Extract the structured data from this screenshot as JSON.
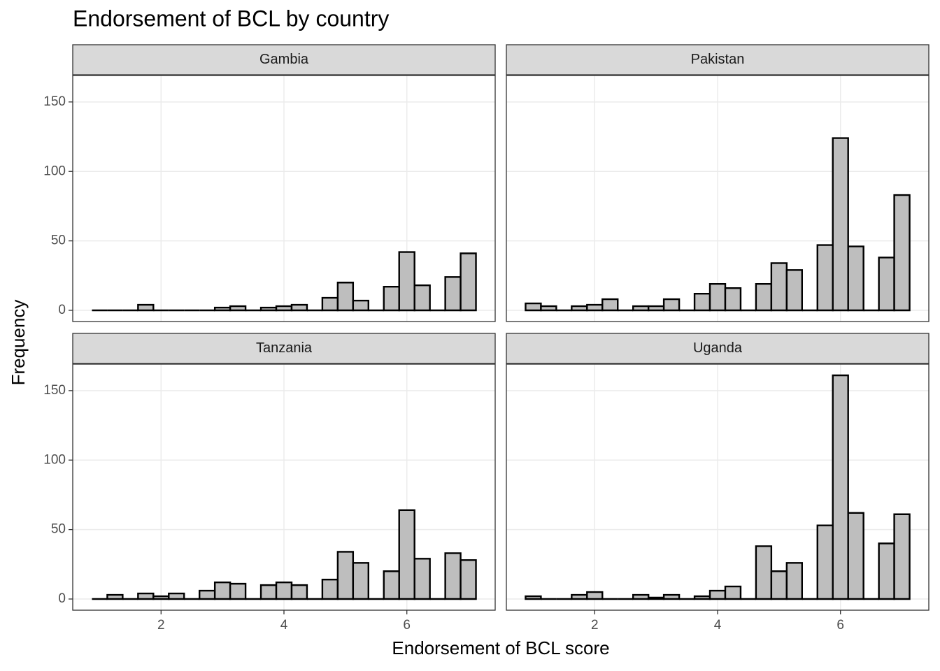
{
  "chart_data": {
    "type": "histogram",
    "title": "Endorsement of BCL by country",
    "x_label": "Endorsement of BCL score",
    "y_label": "Frequency",
    "bins": [
      0.875,
      1.125,
      1.375,
      1.625,
      1.875,
      2.125,
      2.375,
      2.625,
      2.875,
      3.125,
      3.375,
      3.625,
      3.875,
      4.125,
      4.375,
      4.625,
      4.875,
      5.125,
      5.375,
      5.625,
      5.875,
      6.125,
      6.375,
      6.625,
      6.875,
      7.125
    ],
    "facets": [
      {
        "title": "Gambia",
        "values": [
          0,
          0,
          0,
          4,
          0,
          0,
          0,
          0,
          2,
          3,
          0,
          2,
          3,
          4,
          0,
          9,
          20,
          7,
          0,
          17,
          42,
          18,
          0,
          24,
          41
        ]
      },
      {
        "title": "Pakistan",
        "values": [
          5,
          3,
          0,
          3,
          4,
          8,
          0,
          3,
          3,
          8,
          0,
          12,
          19,
          16,
          0,
          19,
          34,
          29,
          0,
          47,
          124,
          46,
          0,
          38,
          83
        ]
      },
      {
        "title": "Tanzania",
        "values": [
          0,
          3,
          0,
          4,
          2,
          4,
          0,
          6,
          12,
          11,
          0,
          10,
          12,
          10,
          0,
          14,
          34,
          26,
          0,
          20,
          64,
          29,
          0,
          33,
          28
        ]
      },
      {
        "title": "Uganda",
        "values": [
          2,
          0,
          0,
          3,
          5,
          0,
          0,
          3,
          1,
          3,
          0,
          2,
          6,
          9,
          0,
          38,
          20,
          26,
          0,
          53,
          161,
          62,
          0,
          40,
          61
        ]
      }
    ],
    "xlim": [
      0.5625,
      7.4375
    ],
    "xticks": [
      2,
      4,
      6
    ],
    "ylim": [
      -8.05,
      169.05
    ],
    "yticks": [
      0,
      50,
      100,
      150
    ],
    "color": "#bebebe",
    "edgecolor": "#000000",
    "grid": true
  }
}
